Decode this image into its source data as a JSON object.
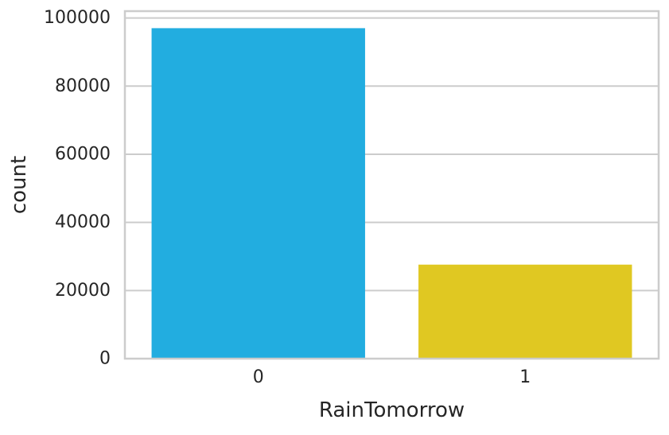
{
  "chart_data": {
    "type": "bar",
    "categories": [
      "0",
      "1"
    ],
    "values": [
      97000,
      27600
    ],
    "title": "",
    "xlabel": "RainTomorrow",
    "ylabel": "count",
    "ylim": [
      0,
      102000
    ],
    "yticks": [
      0,
      20000,
      40000,
      60000,
      80000,
      100000
    ],
    "ytick_labels": [
      "0",
      "20000",
      "40000",
      "60000",
      "80000",
      "100000"
    ],
    "grid": "y-axis on",
    "legend": "none",
    "colors": {
      "bars": [
        "#22ade0",
        "#e0c822"
      ],
      "grid": "#cccccc",
      "spine": "#cccccc",
      "background": "#ffffff"
    }
  }
}
